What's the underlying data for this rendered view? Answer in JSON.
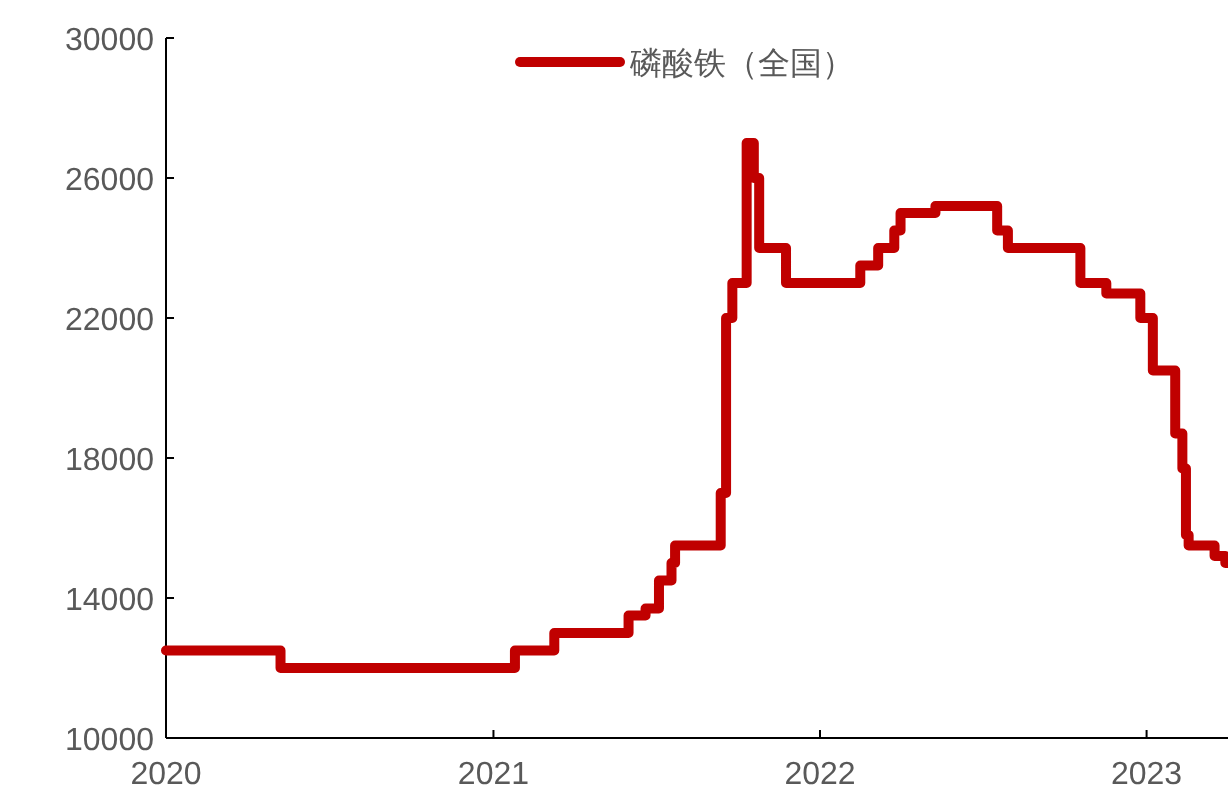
{
  "chart_data": {
    "type": "step",
    "x": [
      "2020-01-01",
      "2020-05-08",
      "2021-01-25",
      "2021-03-10",
      "2021-06-01",
      "2021-06-20",
      "2021-07-05",
      "2021-07-19",
      "2021-07-23",
      "2021-09-12",
      "2021-09-18",
      "2021-09-25",
      "2021-10-11",
      "2021-10-19",
      "2021-10-25",
      "2021-11-24",
      "2022-02-15",
      "2022-03-07",
      "2022-03-25",
      "2022-04-01",
      "2022-05-10",
      "2022-07-18",
      "2022-07-30",
      "2022-10-19",
      "2022-11-17",
      "2022-12-25",
      "2023-01-08",
      "2023-02-02",
      "2023-02-10",
      "2023-02-14",
      "2023-02-17",
      "2023-03-18",
      "2023-03-30"
    ],
    "series": [
      {
        "name": "磷酸铁（全国）",
        "color": "#c00000",
        "values": [
          12500,
          12000,
          12500,
          13000,
          13500,
          13700,
          14500,
          15000,
          15500,
          17000,
          22000,
          23000,
          27000,
          26000,
          24000,
          23000,
          23500,
          24000,
          24500,
          25000,
          25200,
          24500,
          24000,
          23000,
          22700,
          22000,
          20500,
          18700,
          17700,
          15800,
          15500,
          15200,
          15000
        ]
      }
    ],
    "xlim": [
      "2020-01-01",
      "2023-04-02"
    ],
    "xticks": [
      "2020",
      "2021",
      "2022",
      "2023"
    ],
    "ylim": [
      10000,
      30000
    ],
    "yticks": [
      10000,
      14000,
      18000,
      22000,
      26000,
      30000
    ],
    "legend": "top",
    "grid": false,
    "line_style": "solid"
  }
}
